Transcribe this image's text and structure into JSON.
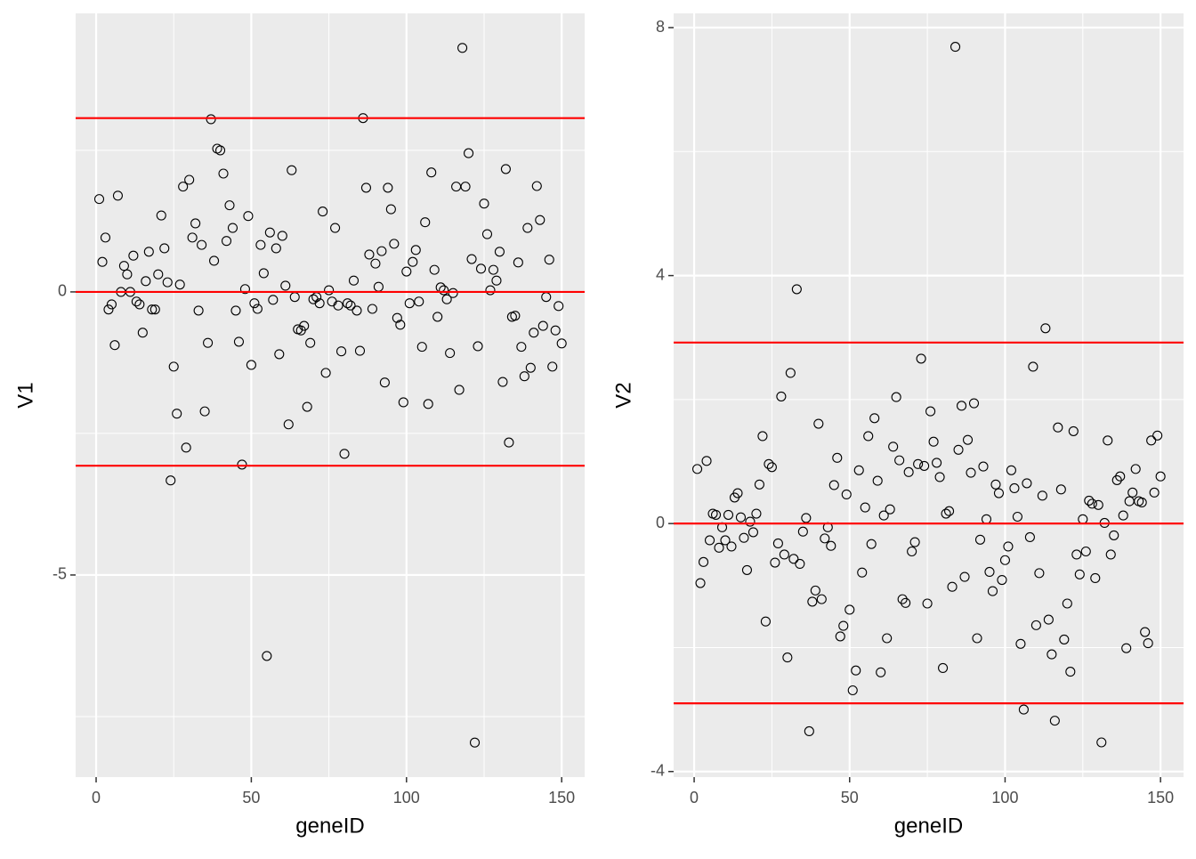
{
  "chart_data": [
    {
      "type": "scatter",
      "x_label": "geneID",
      "y_label": "V1",
      "x": [
        1,
        2,
        3,
        4,
        5,
        6,
        7,
        8,
        9,
        10,
        11,
        12,
        13,
        14,
        15,
        16,
        17,
        18,
        19,
        20,
        21,
        22,
        23,
        24,
        25,
        26,
        27,
        28,
        29,
        30,
        31,
        32,
        33,
        34,
        35,
        36,
        37,
        38,
        39,
        40,
        41,
        42,
        43,
        44,
        45,
        46,
        47,
        48,
        49,
        50,
        51,
        52,
        53,
        54,
        55,
        56,
        57,
        58,
        59,
        60,
        61,
        62,
        63,
        64,
        65,
        66,
        67,
        68,
        69,
        70,
        71,
        72,
        73,
        74,
        75,
        76,
        77,
        78,
        79,
        80,
        81,
        82,
        83,
        84,
        85,
        86,
        87,
        88,
        89,
        90,
        91,
        92,
        93,
        94,
        95,
        96,
        97,
        98,
        99,
        100,
        101,
        102,
        103,
        104,
        105,
        106,
        107,
        108,
        109,
        110,
        111,
        112,
        113,
        114,
        115,
        116,
        117,
        118,
        119,
        120,
        121,
        122,
        123,
        124,
        125,
        126,
        127,
        128,
        129,
        130,
        131,
        132,
        133,
        134,
        135,
        136,
        137,
        138,
        139,
        140,
        141,
        142,
        143,
        144,
        145,
        146,
        147,
        148,
        149,
        150
      ],
      "values": [
        1.64,
        0.53,
        0.96,
        -0.31,
        -0.22,
        -0.94,
        1.7,
        0,
        0.46,
        0.31,
        0,
        0.64,
        -0.17,
        -0.22,
        -0.72,
        0.19,
        0.71,
        -0.31,
        -0.31,
        0.31,
        1.35,
        0.77,
        0.17,
        -3.33,
        -1.32,
        -2.15,
        0.13,
        1.86,
        -2.75,
        1.98,
        0.96,
        1.21,
        -0.33,
        0.83,
        -2.11,
        -0.9,
        3.05,
        0.55,
        2.53,
        2.5,
        2.09,
        0.9,
        1.53,
        1.13,
        -0.33,
        -0.88,
        -3.05,
        0.05,
        1.34,
        -1.29,
        -0.2,
        -0.3,
        0.83,
        0.33,
        -6.43,
        1.05,
        -0.14,
        0.77,
        -1.1,
        0.99,
        0.11,
        -2.34,
        2.15,
        -0.09,
        -0.66,
        -0.68,
        -0.6,
        -2.03,
        -0.9,
        -0.13,
        -0.09,
        -0.2,
        1.42,
        -1.43,
        0.03,
        -0.17,
        1.13,
        -0.24,
        -1.05,
        -2.86,
        -0.2,
        -0.24,
        0.2,
        -0.33,
        -1.04,
        3.07,
        1.84,
        0.66,
        -0.3,
        0.5,
        0.09,
        0.72,
        -1.6,
        1.84,
        1.46,
        0.85,
        -0.46,
        -0.58,
        -1.95,
        0.36,
        -0.2,
        0.53,
        0.74,
        -0.17,
        -0.97,
        1.23,
        -1.98,
        2.11,
        0.39,
        -0.44,
        0.08,
        0.03,
        -0.13,
        -1.08,
        -0.02,
        1.86,
        -1.73,
        4.31,
        1.86,
        2.45,
        0.58,
        -7.96,
        -0.96,
        0.41,
        1.56,
        1.02,
        0.03,
        0.39,
        0.2,
        0.71,
        -1.59,
        2.17,
        -2.66,
        -0.44,
        -0.42,
        0.52,
        -0.97,
        -1.49,
        1.13,
        -1.34,
        -0.72,
        1.87,
        1.27,
        -0.6,
        -0.09,
        0.57,
        -1.32,
        -0.68,
        -0.25,
        -0.91
      ],
      "xlim": [
        -6.6,
        157.4
      ],
      "ylim": [
        -8.57,
        4.92
      ],
      "xticks": [
        0,
        50,
        100,
        150
      ],
      "yticks": [
        -5,
        0
      ],
      "hlines": [
        -3.07,
        0,
        3.07
      ],
      "hline_color": "#ff0000",
      "grid": true
    },
    {
      "type": "scatter",
      "x_label": "geneID",
      "y_label": "V2",
      "x": [
        1,
        2,
        3,
        4,
        5,
        6,
        7,
        8,
        9,
        10,
        11,
        12,
        13,
        14,
        15,
        16,
        17,
        18,
        19,
        20,
        21,
        22,
        23,
        24,
        25,
        26,
        27,
        28,
        29,
        30,
        31,
        32,
        33,
        34,
        35,
        36,
        37,
        38,
        39,
        40,
        41,
        42,
        43,
        44,
        45,
        46,
        47,
        48,
        49,
        50,
        51,
        52,
        53,
        54,
        55,
        56,
        57,
        58,
        59,
        60,
        61,
        62,
        63,
        64,
        65,
        66,
        67,
        68,
        69,
        70,
        71,
        72,
        73,
        74,
        75,
        76,
        77,
        78,
        79,
        80,
        81,
        82,
        83,
        84,
        85,
        86,
        87,
        88,
        89,
        90,
        91,
        92,
        93,
        94,
        95,
        96,
        97,
        98,
        99,
        100,
        101,
        102,
        103,
        104,
        105,
        106,
        107,
        108,
        109,
        110,
        111,
        112,
        113,
        114,
        115,
        116,
        117,
        118,
        119,
        120,
        121,
        122,
        123,
        124,
        125,
        126,
        127,
        128,
        129,
        130,
        131,
        132,
        133,
        134,
        135,
        136,
        137,
        138,
        139,
        140,
        141,
        142,
        143,
        144,
        145,
        146,
        147,
        148,
        149,
        150
      ],
      "values": [
        0.88,
        -0.96,
        -0.62,
        1.01,
        -0.27,
        0.16,
        0.14,
        -0.39,
        -0.06,
        -0.27,
        0.14,
        -0.37,
        0.42,
        0.49,
        0.1,
        -0.23,
        -0.75,
        0.03,
        -0.14,
        0.16,
        0.63,
        1.41,
        -1.58,
        0.96,
        0.91,
        -0.63,
        -0.32,
        2.05,
        -0.5,
        -2.16,
        2.43,
        -0.57,
        3.78,
        -0.65,
        -0.13,
        0.09,
        -3.35,
        -1.26,
        -1.08,
        1.61,
        -1.22,
        -0.24,
        -0.06,
        -0.36,
        0.62,
        1.06,
        -1.82,
        -1.65,
        0.47,
        -1.39,
        -2.69,
        -2.37,
        0.86,
        -0.79,
        0.26,
        1.41,
        -0.33,
        1.7,
        0.69,
        -2.4,
        0.13,
        -1.85,
        0.23,
        1.24,
        2.04,
        1.02,
        -1.22,
        -1.28,
        0.83,
        -0.45,
        -0.3,
        0.96,
        2.66,
        0.93,
        -1.29,
        1.81,
        1.32,
        0.98,
        0.75,
        -2.33,
        0.16,
        0.2,
        -1.02,
        7.69,
        1.19,
        1.9,
        -0.86,
        1.35,
        0.82,
        1.94,
        -1.85,
        -0.26,
        0.92,
        0.07,
        -0.78,
        -1.09,
        0.63,
        0.49,
        -0.91,
        -0.59,
        -0.37,
        0.86,
        0.57,
        0.11,
        -1.94,
        -3,
        0.65,
        -0.22,
        2.53,
        -1.64,
        -0.8,
        0.45,
        3.15,
        -1.55,
        -2.11,
        -3.18,
        1.55,
        0.55,
        -1.87,
        -1.29,
        -2.39,
        1.49,
        -0.5,
        -0.82,
        0.07,
        -0.45,
        0.37,
        0.32,
        -0.88,
        0.3,
        -3.53,
        0.01,
        1.34,
        -0.5,
        -0.19,
        0.7,
        0.76,
        0.13,
        -2.01,
        0.36,
        0.5,
        0.88,
        0.36,
        0.34,
        -1.75,
        -1.93,
        1.34,
        0.5,
        1.42,
        0.76
      ],
      "xlim": [
        -6.6,
        157.4
      ],
      "ylim": [
        -4.09,
        8.23
      ],
      "xticks": [
        0,
        50,
        100,
        150
      ],
      "yticks": [
        -4,
        0,
        4,
        8
      ],
      "hlines": [
        -2.9,
        0,
        2.92
      ],
      "hline_color": "#ff0000",
      "grid": true
    }
  ]
}
